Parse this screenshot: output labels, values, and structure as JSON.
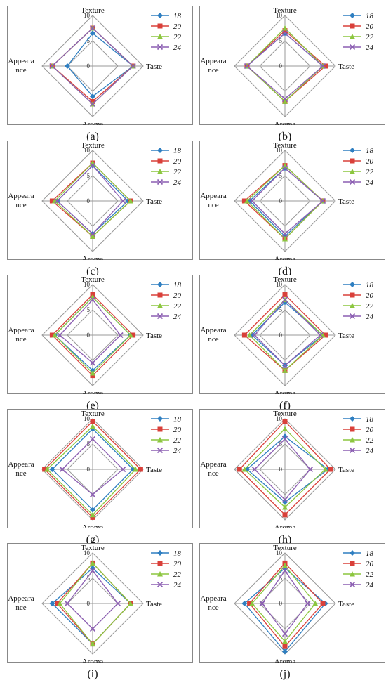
{
  "figure": {
    "series_colors": [
      "#2f7fc1",
      "#d9403a",
      "#8cc63f",
      "#8c5fb2"
    ],
    "markers": [
      "diamond",
      "square",
      "triangle",
      "x"
    ]
  },
  "chart_data": [
    {
      "panel": "(a)",
      "type": "radar",
      "axes": [
        "Texture",
        "Taste",
        "Aroma",
        "Appeara nce"
      ],
      "rmax": 10,
      "ticks": [
        0,
        5,
        10
      ],
      "series": [
        {
          "name": "18",
          "values": [
            6.5,
            8,
            6,
            5
          ]
        },
        {
          "name": "20",
          "values": [
            7.5,
            8,
            7,
            8
          ]
        },
        {
          "name": "22",
          "values": [
            7.5,
            8,
            7.5,
            8
          ]
        },
        {
          "name": "24",
          "values": [
            7.5,
            8,
            7.5,
            8
          ]
        }
      ]
    },
    {
      "panel": "(b)",
      "type": "radar",
      "axes": [
        "Texture",
        "Taste",
        "Aroma",
        "Appeara nce"
      ],
      "rmax": 10,
      "ticks": [
        0,
        5,
        10
      ],
      "series": [
        {
          "name": "18",
          "values": [
            6.5,
            7.5,
            7,
            7.5
          ]
        },
        {
          "name": "20",
          "values": [
            7,
            8,
            7,
            7.5
          ]
        },
        {
          "name": "22",
          "values": [
            7.5,
            7.5,
            7,
            7.5
          ]
        },
        {
          "name": "24",
          "values": [
            6.5,
            7.5,
            6.5,
            7.5
          ]
        }
      ]
    },
    {
      "panel": "(c)",
      "type": "radar",
      "axes": [
        "Texture",
        "Taste",
        "Aroma",
        "Appeara nce"
      ],
      "rmax": 10,
      "ticks": [
        0,
        5,
        10
      ],
      "series": [
        {
          "name": "18",
          "values": [
            7,
            7,
            6.5,
            7
          ]
        },
        {
          "name": "20",
          "values": [
            7.5,
            7.5,
            7,
            8
          ]
        },
        {
          "name": "22",
          "values": [
            7.5,
            7.5,
            7,
            7.5
          ]
        },
        {
          "name": "24",
          "values": [
            7,
            6,
            6.5,
            7
          ]
        }
      ]
    },
    {
      "panel": "(d)",
      "type": "radar",
      "axes": [
        "Texture",
        "Taste",
        "Aroma",
        "Appeara nce"
      ],
      "rmax": 10,
      "ticks": [
        0,
        5,
        10
      ],
      "series": [
        {
          "name": "18",
          "values": [
            6.5,
            7.5,
            7,
            7
          ]
        },
        {
          "name": "20",
          "values": [
            7,
            7.5,
            7.5,
            8
          ]
        },
        {
          "name": "22",
          "values": [
            7,
            7.5,
            7.5,
            7.5
          ]
        },
        {
          "name": "24",
          "values": [
            6.5,
            7.5,
            6.5,
            6.5
          ]
        }
      ]
    },
    {
      "panel": "(e)",
      "type": "radar",
      "axes": [
        "Texture",
        "Taste",
        "Aroma",
        "Appeara nce"
      ],
      "rmax": 10,
      "ticks": [
        0,
        5,
        10
      ],
      "series": [
        {
          "name": "18",
          "values": [
            7.5,
            7.5,
            7,
            7.5
          ]
        },
        {
          "name": "20",
          "values": [
            8,
            8,
            8,
            8
          ]
        },
        {
          "name": "22",
          "values": [
            7.5,
            7.5,
            7.5,
            7.5
          ]
        },
        {
          "name": "24",
          "values": [
            7,
            5.5,
            5.5,
            6.5
          ]
        }
      ]
    },
    {
      "panel": "(f)",
      "type": "radar",
      "axes": [
        "Texture",
        "Taste",
        "Aroma",
        "Appeara nce"
      ],
      "rmax": 10,
      "ticks": [
        0,
        5,
        10
      ],
      "series": [
        {
          "name": "18",
          "values": [
            6.5,
            7.5,
            6,
            6.5
          ]
        },
        {
          "name": "20",
          "values": [
            8,
            8,
            7,
            8
          ]
        },
        {
          "name": "22",
          "values": [
            7,
            7.5,
            7,
            7
          ]
        },
        {
          "name": "24",
          "values": [
            7,
            7,
            6,
            6
          ]
        }
      ]
    },
    {
      "panel": "(g)",
      "type": "radar",
      "axes": [
        "Texture",
        "Taste",
        "Aroma",
        "Appeara nce"
      ],
      "rmax": 10,
      "ticks": [
        0,
        5,
        10
      ],
      "series": [
        {
          "name": "18",
          "values": [
            8,
            8,
            8,
            8
          ]
        },
        {
          "name": "20",
          "values": [
            9.5,
            9.5,
            9.5,
            9.5
          ]
        },
        {
          "name": "22",
          "values": [
            8.5,
            8.5,
            9,
            9
          ]
        },
        {
          "name": "24",
          "values": [
            6,
            6,
            5,
            6
          ]
        }
      ]
    },
    {
      "panel": "(h)",
      "type": "radar",
      "axes": [
        "Texture",
        "Taste",
        "Aroma",
        "Appeara nce"
      ],
      "rmax": 10,
      "ticks": [
        0,
        5,
        10
      ],
      "series": [
        {
          "name": "18",
          "values": [
            6.5,
            8.5,
            6.5,
            7.5
          ]
        },
        {
          "name": "20",
          "values": [
            9.5,
            9,
            9,
            9
          ]
        },
        {
          "name": "22",
          "values": [
            8,
            8,
            7.5,
            8
          ]
        },
        {
          "name": "24",
          "values": [
            6,
            5,
            6,
            6
          ]
        }
      ]
    },
    {
      "panel": "(i)",
      "type": "radar",
      "axes": [
        "Texture",
        "Taste",
        "Aroma",
        "Appeara nce"
      ],
      "rmax": 10,
      "ticks": [
        0,
        5,
        10
      ],
      "series": [
        {
          "name": "18",
          "values": [
            7,
            7.5,
            8,
            8
          ]
        },
        {
          "name": "20",
          "values": [
            8,
            7.5,
            8,
            7
          ]
        },
        {
          "name": "22",
          "values": [
            8,
            7.5,
            8,
            6.5
          ]
        },
        {
          "name": "24",
          "values": [
            6.5,
            5,
            5,
            5
          ]
        }
      ]
    },
    {
      "panel": "(j)",
      "type": "radar",
      "axes": [
        "Texture",
        "Taste",
        "Aroma",
        "Appeara nce"
      ],
      "rmax": 10,
      "ticks": [
        0,
        5,
        10
      ],
      "series": [
        {
          "name": "18",
          "values": [
            7,
            8,
            9.5,
            8
          ]
        },
        {
          "name": "20",
          "values": [
            8,
            7.5,
            8.5,
            7
          ]
        },
        {
          "name": "22",
          "values": [
            7.5,
            6,
            7.5,
            6.5
          ]
        },
        {
          "name": "24",
          "values": [
            6.5,
            4.5,
            6,
            4.5
          ]
        }
      ]
    }
  ]
}
